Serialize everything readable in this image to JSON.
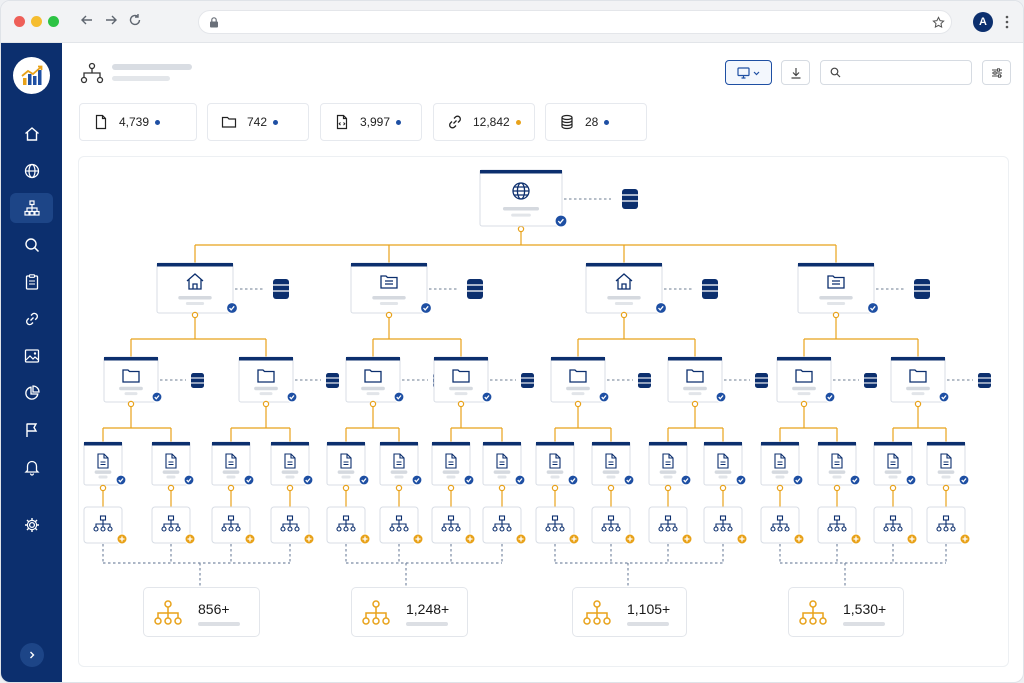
{
  "browser": {
    "avatar_letter": "A",
    "icons": [
      "back-arrow-icon",
      "forward-arrow-icon",
      "reload-icon",
      "lock-icon",
      "star-icon",
      "kebab-menu-icon"
    ]
  },
  "colors": {
    "sidebar": "#0c2f6e",
    "accent_blue": "#1e4fa3",
    "accent_orange": "#e8a21a",
    "connector": "#e8a21a",
    "tree_node_header": "#0c2f6e"
  },
  "sidebar": {
    "items": [
      {
        "icon": "home-icon"
      },
      {
        "icon": "globe-icon"
      },
      {
        "icon": "sitemap-icon",
        "active": true
      },
      {
        "icon": "search-icon"
      },
      {
        "icon": "clipboard-icon"
      },
      {
        "icon": "link-icon"
      },
      {
        "icon": "image-icon"
      },
      {
        "icon": "pie-chart-icon"
      },
      {
        "icon": "flag-icon"
      },
      {
        "icon": "bell-icon"
      },
      {
        "icon": "gear-icon"
      }
    ],
    "expand_icon": "chevron-right-icon"
  },
  "stats": [
    {
      "icon": "file-icon",
      "value": "4,739",
      "dot": "#1e4fa3"
    },
    {
      "icon": "folder-icon",
      "value": "742",
      "dot": "#1e4fa3"
    },
    {
      "icon": "code-file-icon",
      "value": "3,997",
      "dot": "#1e4fa3"
    },
    {
      "icon": "link-icon",
      "value": "12,842",
      "dot": "#e8a21a"
    },
    {
      "icon": "database-icon",
      "value": "28",
      "dot": "#1e4fa3"
    }
  ],
  "summaries": [
    {
      "value": "856+"
    },
    {
      "value": "1,248+"
    },
    {
      "value": "1,105+"
    },
    {
      "value": "1,530+"
    }
  ]
}
